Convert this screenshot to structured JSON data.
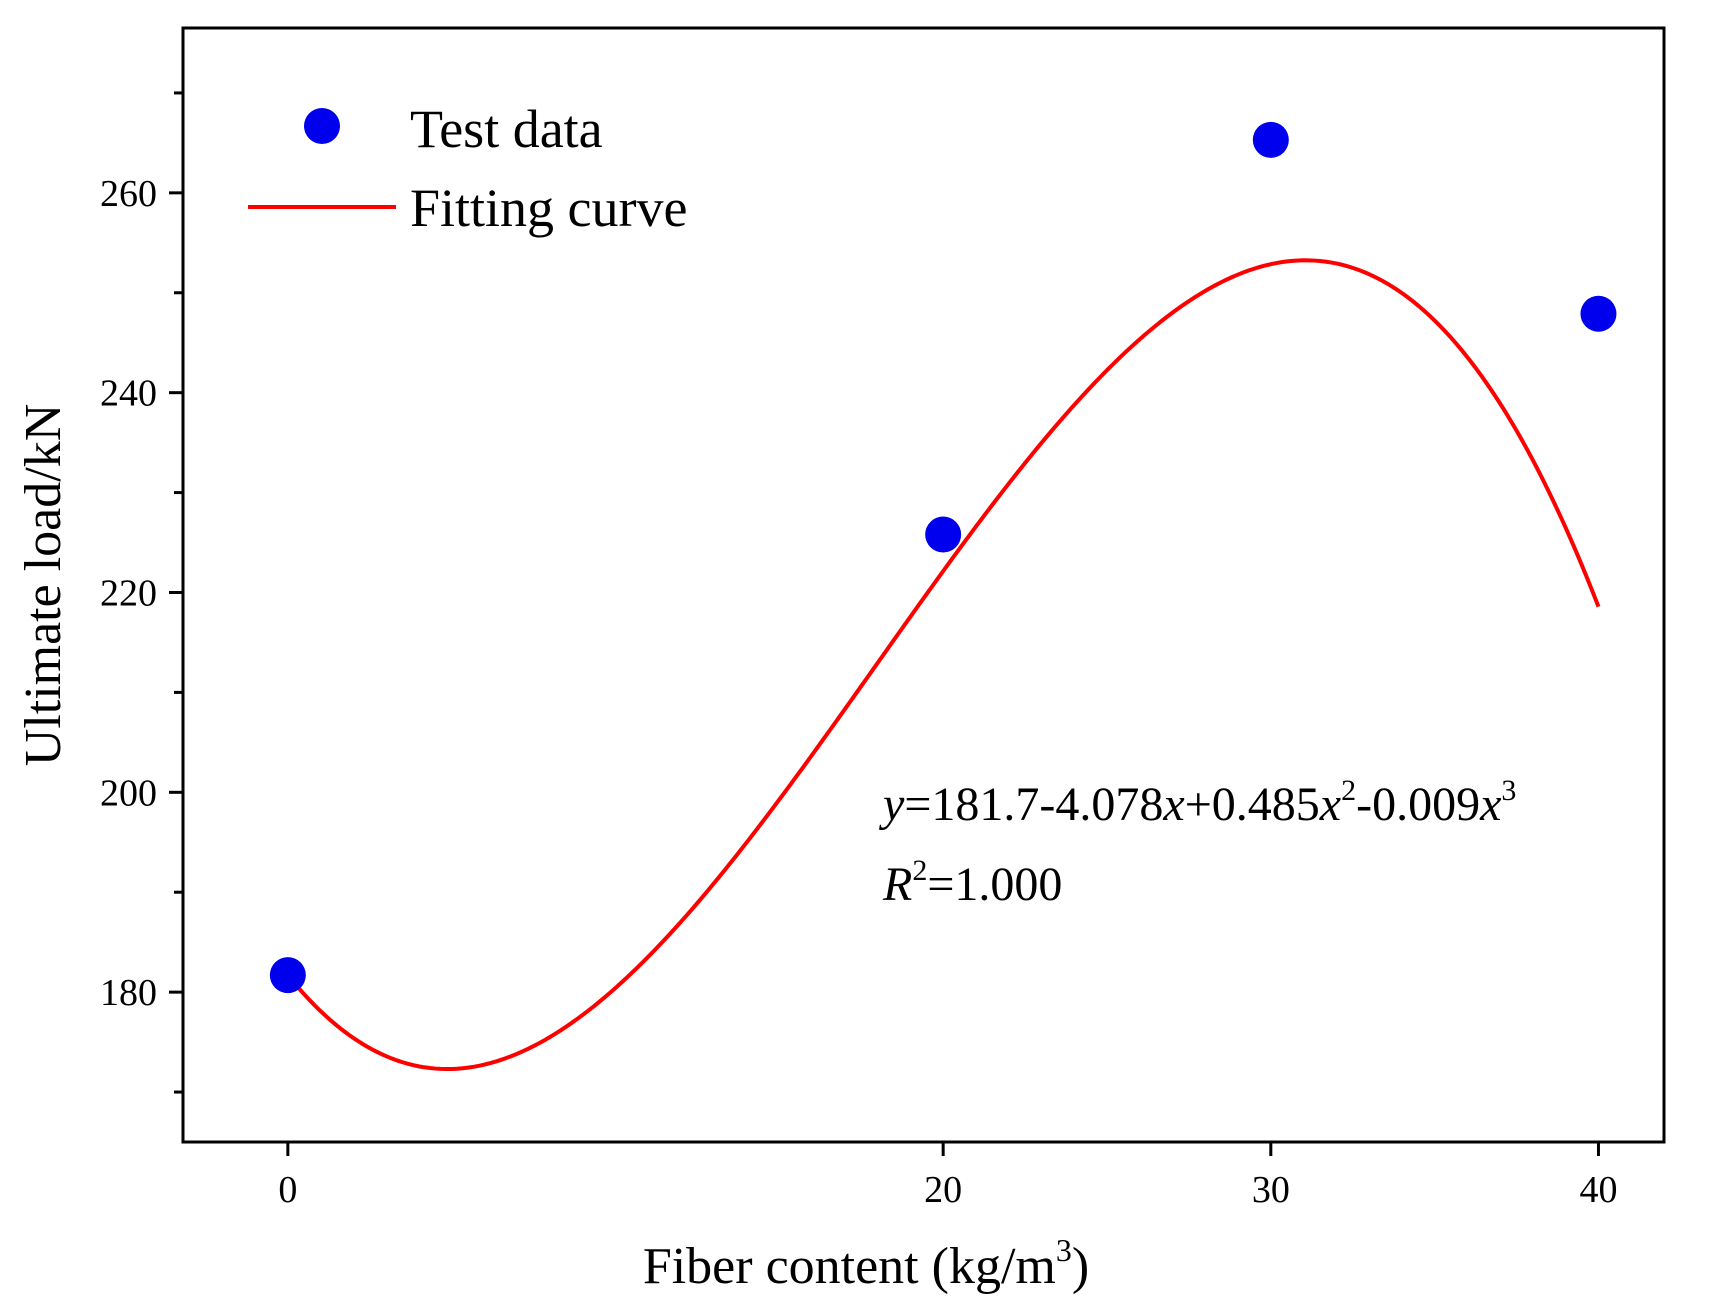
{
  "chart_data": {
    "type": "scatter",
    "xlabel": "Fiber content (kg/m",
    "xlabel_sup": "3",
    "xlabel_end": ")",
    "ylabel": "Ultimate load/kN",
    "xlim": [
      -3.2,
      42
    ],
    "ylim": [
      165,
      276.5
    ],
    "x_ticks": [
      0,
      20,
      30,
      40
    ],
    "y_ticks": [
      180,
      200,
      220,
      240,
      260
    ],
    "y_minor_ticks": [
      170,
      190,
      210,
      230,
      250,
      270
    ],
    "series": [
      {
        "name": "Test data",
        "kind": "points",
        "color": "#0000ee",
        "x": [
          0,
          20,
          30,
          40
        ],
        "y": [
          181.7,
          225.8,
          265.3,
          247.9
        ]
      },
      {
        "name": "Fitting curve",
        "kind": "line",
        "color": "#ff0000",
        "coefficients": [
          181.7,
          -4.078,
          0.485,
          -0.009
        ],
        "domain": [
          0,
          40
        ]
      }
    ],
    "legend_position": "top-left",
    "annotation": {
      "equation": {
        "y": "y",
        "eq1": "=181.7-4.078",
        "x1": "x",
        "eq2": "+0.485",
        "x2": "x",
        "p2": "2",
        "eq3": "-0.009",
        "x3": "x",
        "p3": "3"
      },
      "r2": {
        "R": "R",
        "p": "2",
        "val": "=1.000"
      }
    }
  }
}
